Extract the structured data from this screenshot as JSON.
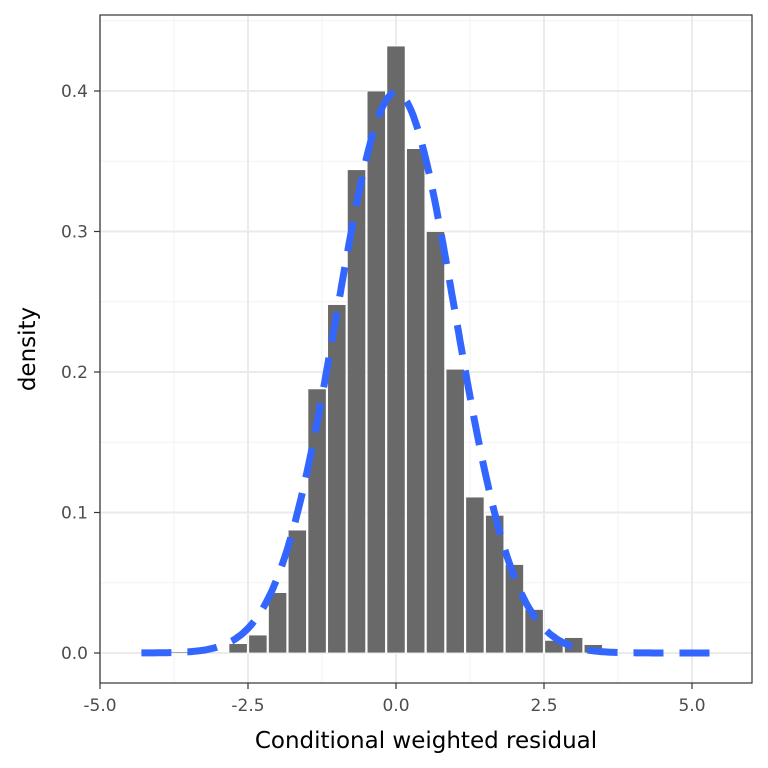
{
  "chart_data": {
    "type": "bar",
    "title": "",
    "xlabel": "Conditional weighted residual",
    "ylabel": "density",
    "xlim": [
      -5.5,
      6.0
    ],
    "ylim": [
      -0.022,
      0.455
    ],
    "xticks": [
      "-5.0",
      "-2.5",
      "0.0",
      "2.5",
      "5.0"
    ],
    "xtick_values": [
      -5,
      -2.5,
      0,
      2.5,
      5
    ],
    "yticks": [
      "0.0",
      "0.1",
      "0.2",
      "0.3",
      "0.4"
    ],
    "ytick_values": [
      0,
      0.1,
      0.2,
      0.3,
      0.4
    ],
    "grid": true,
    "bin_width": 0.3333,
    "bin_centers": [
      -3.667,
      -3.333,
      -2.667,
      -2.333,
      -2.0,
      -1.667,
      -1.333,
      -1.0,
      -0.667,
      -0.333,
      0.0,
      0.333,
      0.667,
      1.0,
      1.333,
      1.667,
      2.0,
      2.333,
      2.667,
      3.0,
      3.333
    ],
    "values": [
      0.001,
      0.001,
      0.0067,
      0.0128,
      0.043,
      0.0875,
      0.188,
      0.248,
      0.344,
      0.4,
      0.432,
      0.359,
      0.3,
      0.202,
      0.111,
      0.098,
      0.063,
      0.031,
      0.009,
      0.011,
      0.006
    ],
    "series": [
      {
        "name": "histogram",
        "color": "#666666"
      },
      {
        "name": "normal density",
        "type": "line",
        "mean": 0,
        "sd": 1,
        "x_range": [
          -4.3,
          5.4
        ],
        "color": "#3366FF",
        "dash": "dashed"
      }
    ]
  }
}
